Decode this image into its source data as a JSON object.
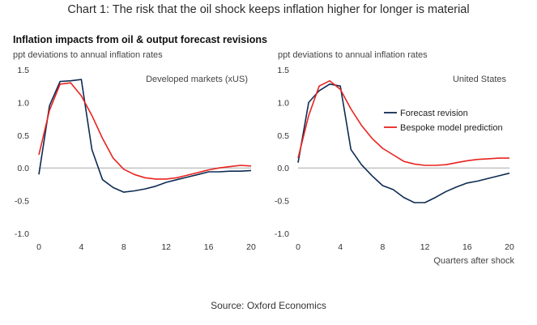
{
  "title": "Chart 1: The risk that the oil shock keeps inflation higher for longer is material",
  "subtitle": "Inflation impacts from oil & output forecast revisions",
  "source": "Source: Oxford Economics",
  "colors": {
    "forecast_revision": "#0d2b52",
    "bespoke_model": "#e8231f",
    "zero_line": "#a9a9a9"
  },
  "chart_data": [
    {
      "type": "line",
      "panel_label": "Developed markets (xUS)",
      "ylabel": "ppt deviations to annual inflation rates",
      "xlabel": "",
      "xlim": [
        0,
        20
      ],
      "ylim": [
        -1.0,
        1.5
      ],
      "xticks": [
        0,
        4,
        8,
        12,
        16,
        20
      ],
      "xtick_labels": [
        "0",
        "4",
        "8",
        "12",
        "16",
        "20"
      ],
      "yticks": [
        1.5,
        1.0,
        0.5,
        0.0,
        -0.5,
        -1.0
      ],
      "ytick_labels": [
        "1.5",
        "1.0",
        "0.5",
        "0.0",
        "-0.5",
        "-1.0"
      ],
      "grid": false,
      "legend": "",
      "series": [
        {
          "key": "forecast_revision",
          "x": [
            0,
            1,
            2,
            3,
            4,
            5,
            6,
            7,
            8,
            9,
            10,
            11,
            12,
            13,
            14,
            15,
            16,
            17,
            18,
            19,
            20
          ],
          "values": [
            -0.1,
            0.95,
            1.32,
            1.33,
            1.35,
            0.28,
            -0.18,
            -0.3,
            -0.37,
            -0.35,
            -0.32,
            -0.28,
            -0.22,
            -0.18,
            -0.14,
            -0.1,
            -0.06,
            -0.06,
            -0.05,
            -0.05,
            -0.04
          ]
        },
        {
          "key": "bespoke_model",
          "x": [
            0,
            1,
            2,
            3,
            4,
            5,
            6,
            7,
            8,
            9,
            10,
            11,
            12,
            13,
            14,
            15,
            16,
            17,
            18,
            19,
            20
          ],
          "values": [
            0.2,
            0.88,
            1.28,
            1.3,
            1.1,
            0.8,
            0.45,
            0.15,
            -0.02,
            -0.1,
            -0.15,
            -0.17,
            -0.17,
            -0.15,
            -0.11,
            -0.07,
            -0.03,
            0.0,
            0.02,
            0.04,
            0.03
          ]
        }
      ]
    },
    {
      "type": "line",
      "panel_label": "United States",
      "ylabel": "ppt deviations to annual inflation rates",
      "xlabel": "Quarters after shock",
      "xlim": [
        0,
        20
      ],
      "ylim": [
        -1.0,
        1.5
      ],
      "xticks": [
        0,
        4,
        8,
        12,
        16,
        20
      ],
      "xtick_labels": [
        "0",
        "4",
        "8",
        "12",
        "16",
        "20"
      ],
      "yticks": [
        1.5,
        1.0,
        0.5,
        0.0,
        -0.5,
        -1.0
      ],
      "ytick_labels": [
        "1.5",
        "1.0",
        "0.5",
        "0.0",
        "-0.5",
        "-1.0"
      ],
      "grid": false,
      "legend": "center-right",
      "series": [
        {
          "key": "forecast_revision",
          "name": "Forecast revision",
          "x": [
            0,
            1,
            2,
            3,
            4,
            5,
            6,
            7,
            8,
            9,
            10,
            11,
            12,
            13,
            14,
            15,
            16,
            17,
            18,
            19,
            20
          ],
          "values": [
            0.08,
            1.0,
            1.18,
            1.28,
            1.25,
            0.28,
            0.05,
            -0.12,
            -0.27,
            -0.33,
            -0.45,
            -0.53,
            -0.53,
            -0.45,
            -0.36,
            -0.29,
            -0.23,
            -0.2,
            -0.16,
            -0.12,
            -0.08
          ]
        },
        {
          "key": "bespoke_model",
          "name": "Bespoke model prediction",
          "x": [
            0,
            1,
            2,
            3,
            4,
            5,
            6,
            7,
            8,
            9,
            10,
            11,
            12,
            13,
            14,
            15,
            16,
            17,
            18,
            19,
            20
          ],
          "values": [
            0.15,
            0.8,
            1.25,
            1.33,
            1.2,
            0.9,
            0.65,
            0.45,
            0.3,
            0.2,
            0.1,
            0.06,
            0.04,
            0.04,
            0.05,
            0.08,
            0.11,
            0.13,
            0.14,
            0.15,
            0.15
          ]
        }
      ]
    }
  ]
}
